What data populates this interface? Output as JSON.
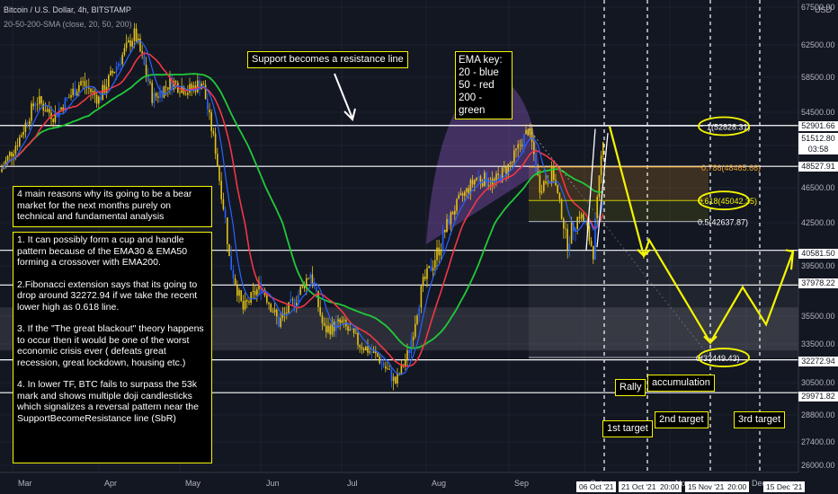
{
  "header": {
    "symbol": "Bitcoin / U.S. Dollar, 4h, BITSTAMP",
    "indicator": "20-50-200-SMA (close, 20, 50, 200)"
  },
  "currency": "USD",
  "chart_data": {
    "type": "candlestick",
    "x_labels": [
      "Mar",
      "Apr",
      "May",
      "Jun",
      "Jul",
      "Aug",
      "Sep",
      "Oct",
      "Nov",
      "Dec"
    ],
    "y_ticks": [
      "67500.00",
      "62500.00",
      "58500.00",
      "54500.00",
      "50500.00",
      "46500.00",
      "42500.00",
      "39500.00",
      "35500.00",
      "33500.00",
      "30500.00",
      "28800.00",
      "27400.00",
      "26000.00"
    ],
    "ylim": [
      26000,
      67500
    ],
    "price_levels": [
      {
        "label": "52901.66",
        "value": 52901.66
      },
      {
        "label": "51512.80",
        "value": 51512.8,
        "extra": "03:58"
      },
      {
        "label": "48527.91",
        "value": 48527.91
      },
      {
        "label": "40581.50",
        "value": 40581.5
      },
      {
        "label": "37978.22",
        "value": 37978.22
      },
      {
        "label": "32272.94",
        "value": 32272.94
      },
      {
        "label": "29971.82",
        "value": 29971.82
      }
    ],
    "fib_levels": [
      {
        "label": "1(52828.31)",
        "value": 52828.31
      },
      {
        "label": "0.786(48465.66)",
        "value": 48465.66
      },
      {
        "label": "0.618(45042.35)",
        "value": 45042.35
      },
      {
        "label": "0.5(42637.87)",
        "value": 42637.87
      },
      {
        "label": "0(32449.43)",
        "value": 32449.43
      }
    ],
    "date_tags": [
      "06 Oct '21",
      "21 Oct '21",
      "20:00",
      "15 Nov '21",
      "20:00",
      "15 Dec '21"
    ],
    "ema_key": [
      "EMA key:",
      "20 - blue",
      "50 - red",
      "200 - green"
    ],
    "series_colors": {
      "price": "#e2c21c",
      "ema20": "#2962ff",
      "ema50": "#f23645",
      "ema200": "#22c93a",
      "projection": "#f5f500"
    }
  },
  "notes": {
    "support_resistance": "Support becomes a resistance line",
    "title_box": "4 main reasons why its going to be a bear market for the next months purely on technical and fundamental analysis",
    "reasons": [
      "1. It can possibly form a cup and handle pattern because of the EMA30 & EMA50 forming a crossover with EMA200.",
      "2.Fibonacci extension says that its going to drop around 32272.94 if we take the recent lower high as 0.618 line.",
      "3. If the \"The great blackout\" theory happens to occur then it would be one of the worst economic crisis ever ( defeats great recession, great lockdown, housing etc.)",
      "4. In lower TF, BTC fails to surpass the 53k mark and shows multiple doji candlesticks which signalizes a reversal pattern near the SupportBecomeResistance line (SbR)"
    ]
  },
  "tags": {
    "rally": "Rally",
    "accumulation": "accumulation",
    "first_target": "1st target",
    "second_target": "2nd target",
    "third_target": "3rd target"
  }
}
